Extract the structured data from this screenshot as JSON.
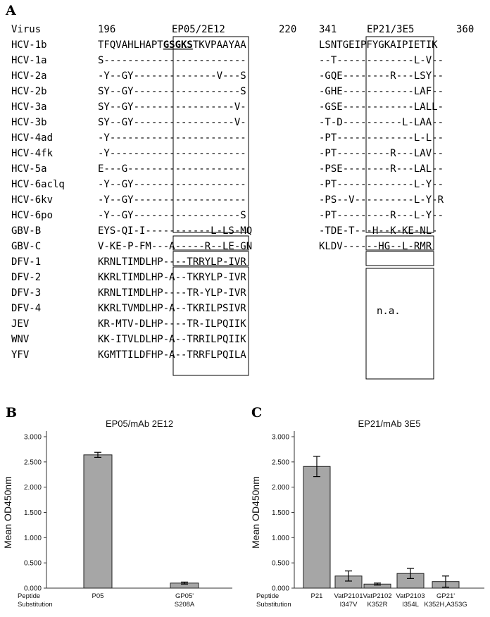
{
  "panels": {
    "a": "A",
    "b": "B",
    "c": "C"
  },
  "alignment": {
    "header": {
      "virus": "Virus",
      "pos196": "196",
      "ep05": "EP05/2E12",
      "pos220": "220",
      "pos341": "341",
      "ep21": "EP21/3E5",
      "pos360": "360"
    },
    "rows": [
      {
        "name": "HCV-1b",
        "left": "TFQVAHLHAPTGSGKSTKVPAAYAA",
        "right": "LSNTGEIPFYGKAIPIETIK"
      },
      {
        "name": "HCV-1a",
        "left": "S------------------------",
        "right": "--T-------------L-V--"
      },
      {
        "name": "HCV-2a",
        "left": "-Y--GY--------------V---S",
        "right": "-GQE--------R---LSY--"
      },
      {
        "name": "HCV-2b",
        "left": "SY--GY------------------S",
        "right": "-GHE------------LAF--"
      },
      {
        "name": "HCV-3a",
        "left": "SY--GY-----------------V-",
        "right": "-GSE------------LALL-"
      },
      {
        "name": "HCV-3b",
        "left": "SY--GY-----------------V-",
        "right": "-T-D----------L-LAA--"
      },
      {
        "name": "HCV-4ad",
        "left": "-Y-----------------------",
        "right": "-PT-------------L-L--"
      },
      {
        "name": "HCV-4fk",
        "left": "-Y-----------------------",
        "right": "-PT---------R---LAV--"
      },
      {
        "name": "HCV-5a",
        "left": "E---G--------------------",
        "right": "-PSE--------R---LAL--"
      },
      {
        "name": "HCV-6aclq",
        "left": "-Y--GY-------------------",
        "right": "-PT-------------L-Y--"
      },
      {
        "name": "HCV-6kv",
        "left": "-Y--GY-------------------",
        "right": "-PS--V----------L-Y-R"
      },
      {
        "name": "HCV-6po",
        "left": "-Y--GY------------------S",
        "right": "-PT---------R---L-Y--"
      },
      {
        "name": "GBV-B",
        "left": "EYS-QI-I-----------L-LS-MQ",
        "right": "-TDE-T---H--K-KE-NL-"
      },
      {
        "name": "GBV-C",
        "left": "V-KE-P-FM---A-----R--LE-GN",
        "right": "KLDV------HG--L-RMR"
      },
      {
        "name": "DFV-1",
        "left": "KRNLTIMDLHP----TRRYLP-IVR",
        "right": ""
      },
      {
        "name": "DFV-2",
        "left": "KKRLTIMDLHP-A--TKRYLP-IVR",
        "right": ""
      },
      {
        "name": "DFV-3",
        "left": "KRNLTIMDLHP----TR-YLP-IVR",
        "right": ""
      },
      {
        "name": "DFV-4",
        "left": "KKRLTVMDLHP-A--TKRILPSIVR",
        "right": ""
      },
      {
        "name": "JEV",
        "left": "KR-MTV-DLHP----TR-ILPQIIK",
        "right": ""
      },
      {
        "name": "WNV",
        "left": "KK-ITVLDLHP-A--TRRILPQIIK",
        "right": ""
      },
      {
        "name": "YFV",
        "left": "KGMTTILDFHP-A--TRRFLPQILA",
        "right": ""
      }
    ],
    "na_label": "n.a."
  },
  "chart_data": [
    {
      "type": "bar",
      "title": "EP05/mAb 2E12",
      "ylabel": "Mean OD450nm",
      "ylim": [
        0,
        3.0
      ],
      "yticks": [
        "0.000",
        "0.500",
        "1.000",
        "1.500",
        "2.000",
        "2.500",
        "3.000"
      ],
      "row_labels": [
        "Peptide",
        "Substitution"
      ],
      "categories": [
        {
          "peptide": "P05",
          "substitution": ""
        },
        {
          "peptide": "GP05'",
          "substitution": "S208A"
        }
      ],
      "values": [
        2.64,
        0.1
      ],
      "errors": [
        0.05,
        0.02
      ],
      "bar_color": "#a6a6a6"
    },
    {
      "type": "bar",
      "title": "EP21/mAb 3E5",
      "ylabel": "Mean OD450nm",
      "ylim": [
        0,
        3.0
      ],
      "yticks": [
        "0.000",
        "0.500",
        "1.000",
        "1.500",
        "2.000",
        "2.500",
        "3.000"
      ],
      "row_labels": [
        "Peptide",
        "Substitution"
      ],
      "categories": [
        {
          "peptide": "P21",
          "substitution": ""
        },
        {
          "peptide": "VatP2101",
          "substitution": "I347V"
        },
        {
          "peptide": "VatP2102",
          "substitution": "K352R"
        },
        {
          "peptide": "VatP2103",
          "substitution": "I354L"
        },
        {
          "peptide": "GP21'",
          "substitution": "K352H,A353G"
        }
      ],
      "values": [
        2.41,
        0.24,
        0.08,
        0.29,
        0.13
      ],
      "errors": [
        0.2,
        0.1,
        0.02,
        0.1,
        0.11
      ],
      "bar_color": "#a6a6a6"
    }
  ]
}
